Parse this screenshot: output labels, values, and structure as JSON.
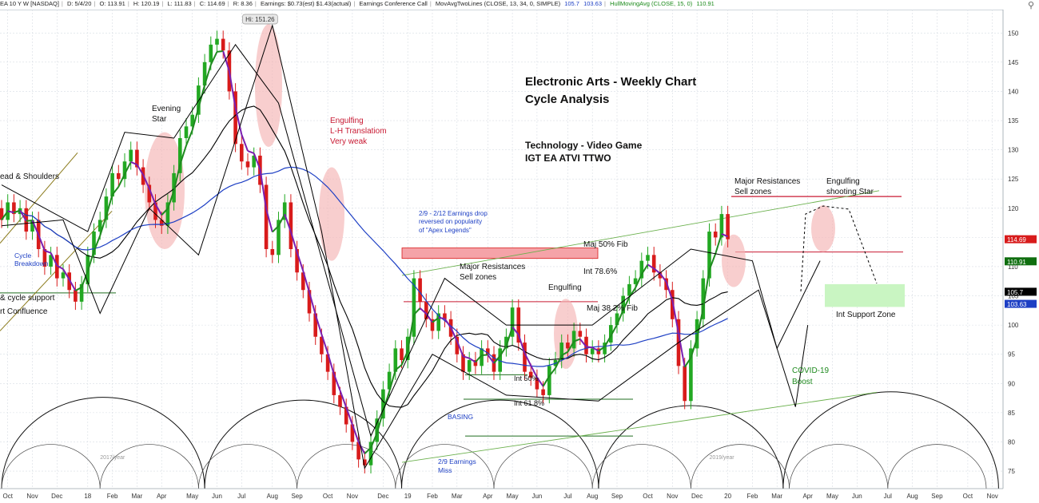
{
  "header": {
    "symbol": "EA 10 Y W [NASDAQ]",
    "date": "D: 5/4/20",
    "open": "O: 113.91",
    "high": "H: 120.19",
    "low": "L: 111.83",
    "close": "C: 114.69",
    "range": "R: 8.36",
    "earnings": "Earnings: $0.73(est) $1.43(actual)",
    "conference": "Earnings Conference Call",
    "movavg_label": "MovAvgTwoLines (CLOSE, 13, 34, 0, SIMPLE)",
    "movavg_v1": "105.7",
    "movavg_v2": "103.63",
    "hull_label": "HullMovingAvg (CLOSE, 15, 0)",
    "hull_v": "110.91",
    "zoom_icon": "magnifier-icon"
  },
  "chart_data": {
    "type": "candlestick",
    "ylim": [
      72,
      154
    ],
    "ytick_step": 5,
    "x_labels": [
      "Oct",
      "Nov",
      "Dec",
      "18",
      "Feb",
      "Mar",
      "Apr",
      "May",
      "Jun",
      "Jul",
      "Aug",
      "Sep",
      "Oct",
      "Nov",
      "Dec",
      "19",
      "Feb",
      "Mar",
      "Apr",
      "May",
      "Jun",
      "Jul",
      "Aug",
      "Sep",
      "Oct",
      "Nov",
      "Dec",
      "20",
      "Feb",
      "Mar",
      "Apr",
      "May",
      "Jun",
      "Jul",
      "Aug",
      "Sep",
      "Oct",
      "Nov"
    ],
    "x_label_weeks": [
      1,
      5,
      9,
      14,
      18,
      22,
      26,
      31,
      35,
      39,
      44,
      48,
      53,
      57,
      62,
      66,
      70,
      74,
      79,
      83,
      87,
      92,
      96,
      100,
      105,
      109,
      113,
      118,
      122,
      126,
      131,
      135,
      139,
      144,
      148,
      152,
      157,
      161
    ],
    "candles": [
      {
        "o": 120,
        "c": 118
      },
      {
        "o": 118,
        "c": 121
      },
      {
        "o": 121,
        "c": 119
      },
      {
        "o": 119,
        "c": 120
      },
      {
        "o": 120,
        "c": 116
      },
      {
        "o": 116,
        "c": 118
      },
      {
        "o": 118,
        "c": 113
      },
      {
        "o": 113,
        "c": 110
      },
      {
        "o": 110,
        "c": 112
      },
      {
        "o": 112,
        "c": 108
      },
      {
        "o": 108,
        "c": 109
      },
      {
        "o": 109,
        "c": 106
      },
      {
        "o": 106,
        "c": 104
      },
      {
        "o": 104,
        "c": 107
      },
      {
        "o": 107,
        "c": 112
      },
      {
        "o": 112,
        "c": 116
      },
      {
        "o": 116,
        "c": 118
      },
      {
        "o": 118,
        "c": 122
      },
      {
        "o": 122,
        "c": 126
      },
      {
        "o": 126,
        "c": 125
      },
      {
        "o": 125,
        "c": 128
      },
      {
        "o": 128,
        "c": 130
      },
      {
        "o": 130,
        "c": 127
      },
      {
        "o": 127,
        "c": 124
      },
      {
        "o": 124,
        "c": 121
      },
      {
        "o": 121,
        "c": 118
      },
      {
        "o": 118,
        "c": 117
      },
      {
        "o": 117,
        "c": 121
      },
      {
        "o": 121,
        "c": 126
      },
      {
        "o": 126,
        "c": 132
      },
      {
        "o": 132,
        "c": 134
      },
      {
        "o": 134,
        "c": 136
      },
      {
        "o": 136,
        "c": 141
      },
      {
        "o": 141,
        "c": 145
      },
      {
        "o": 145,
        "c": 148
      },
      {
        "o": 148,
        "c": 149
      },
      {
        "o": 149,
        "c": 147
      },
      {
        "o": 147,
        "c": 140
      },
      {
        "o": 140,
        "c": 131
      },
      {
        "o": 131,
        "c": 128
      },
      {
        "o": 128,
        "c": 127
      },
      {
        "o": 127,
        "c": 129
      },
      {
        "o": 129,
        "c": 124
      },
      {
        "o": 124,
        "c": 113
      },
      {
        "o": 113,
        "c": 112
      },
      {
        "o": 112,
        "c": 118
      },
      {
        "o": 118,
        "c": 121
      },
      {
        "o": 121,
        "c": 113
      },
      {
        "o": 113,
        "c": 109
      },
      {
        "o": 109,
        "c": 106
      },
      {
        "o": 106,
        "c": 102
      },
      {
        "o": 102,
        "c": 98
      },
      {
        "o": 98,
        "c": 95
      },
      {
        "o": 95,
        "c": 92
      },
      {
        "o": 92,
        "c": 88
      },
      {
        "o": 88,
        "c": 86
      },
      {
        "o": 86,
        "c": 83
      },
      {
        "o": 83,
        "c": 80
      },
      {
        "o": 80,
        "c": 77
      },
      {
        "o": 77,
        "c": 76
      },
      {
        "o": 76,
        "c": 80
      },
      {
        "o": 80,
        "c": 84
      },
      {
        "o": 84,
        "c": 89
      },
      {
        "o": 89,
        "c": 92
      },
      {
        "o": 92,
        "c": 96
      },
      {
        "o": 96,
        "c": 94
      },
      {
        "o": 94,
        "c": 98
      },
      {
        "o": 98,
        "c": 108
      },
      {
        "o": 108,
        "c": 104
      },
      {
        "o": 104,
        "c": 101
      },
      {
        "o": 101,
        "c": 99
      },
      {
        "o": 99,
        "c": 102
      },
      {
        "o": 102,
        "c": 101
      },
      {
        "o": 101,
        "c": 98
      },
      {
        "o": 98,
        "c": 95
      },
      {
        "o": 95,
        "c": 92
      },
      {
        "o": 92,
        "c": 94
      },
      {
        "o": 94,
        "c": 93
      },
      {
        "o": 93,
        "c": 96
      },
      {
        "o": 96,
        "c": 95
      },
      {
        "o": 95,
        "c": 92
      },
      {
        "o": 92,
        "c": 96
      },
      {
        "o": 96,
        "c": 98
      },
      {
        "o": 98,
        "c": 103
      },
      {
        "o": 103,
        "c": 97
      },
      {
        "o": 97,
        "c": 92
      },
      {
        "o": 92,
        "c": 91
      },
      {
        "o": 91,
        "c": 89
      },
      {
        "o": 89,
        "c": 88
      },
      {
        "o": 88,
        "c": 93
      },
      {
        "o": 93,
        "c": 94
      },
      {
        "o": 94,
        "c": 97
      },
      {
        "o": 97,
        "c": 96
      },
      {
        "o": 96,
        "c": 99
      },
      {
        "o": 99,
        "c": 98
      },
      {
        "o": 98,
        "c": 95
      },
      {
        "o": 95,
        "c": 96
      },
      {
        "o": 96,
        "c": 95
      },
      {
        "o": 95,
        "c": 97
      },
      {
        "o": 97,
        "c": 100
      },
      {
        "o": 100,
        "c": 102
      },
      {
        "o": 102,
        "c": 105
      },
      {
        "o": 105,
        "c": 107
      },
      {
        "o": 107,
        "c": 108
      },
      {
        "o": 108,
        "c": 111
      },
      {
        "o": 111,
        "c": 112
      },
      {
        "o": 112,
        "c": 109
      },
      {
        "o": 109,
        "c": 108
      },
      {
        "o": 108,
        "c": 106
      },
      {
        "o": 106,
        "c": 101
      },
      {
        "o": 101,
        "c": 93
      },
      {
        "o": 93,
        "c": 87
      },
      {
        "o": 87,
        "c": 96
      },
      {
        "o": 96,
        "c": 101
      },
      {
        "o": 101,
        "c": 108
      },
      {
        "o": 108,
        "c": 116
      },
      {
        "o": 116,
        "c": 115
      },
      {
        "o": 115,
        "c": 119
      },
      {
        "o": 119,
        "c": 114.69
      }
    ],
    "annotations": {
      "title": "Electronic Arts - Weekly Chart",
      "subtitle": "Cycle Analysis",
      "sector": "Technology - Video Game",
      "peers": "IGT EA ATVI TTWO",
      "hi_badge": "Hi: 151.26",
      "evening_star_1": "Evening",
      "evening_star_2": "Star",
      "engulfing_red_1": "Engulfing",
      "engulfing_red_2": "L-H Translatiom",
      "engulfing_red_3": "Very weak",
      "head_shoulders": "ead & Shoulders",
      "cycle_breakdown_1": "Cycle",
      "cycle_breakdown_2": "Breakdown",
      "cycle_support": "& cycle support",
      "confluence": "rt Confluence",
      "earnings_drop_1": "2/9 - 2/12 Earnings drop",
      "earnings_drop_2": "reversed on popularity",
      "earnings_drop_3": "of \"Apex Legends\"",
      "maj_res_1": "Major Resistances",
      "maj_res_2": "Sell zones",
      "maj50": "Maj 50% Fib",
      "int786": "Int 78.6%",
      "engulfing_mid": "Engulfing",
      "maj382": "Maj 38.2% Fib",
      "int50": "Int 50%",
      "int618": "Int 61.8%",
      "basing": "BASING",
      "earn_miss_1": "2/9 Earnings",
      "earn_miss_2": "Miss",
      "maj_res_r1": "Major Resistances",
      "maj_res_r2": "Sell zones",
      "shooting_1": "Engulfing",
      "shooting_2": "shooting Star",
      "int_support": "Int Support Zone",
      "covid_1": "COVID-19",
      "covid_2": "Boost",
      "year_2017": "2017/year",
      "year_2019": "2019/year"
    },
    "price_labels": [
      {
        "value": 114.69,
        "text": "114.69",
        "color": "#d81b1b"
      },
      {
        "value": 110.91,
        "text": "110.91",
        "color": "#0f6e0f"
      },
      {
        "value": 105.7,
        "text": "105.7",
        "color": "#000000"
      },
      {
        "value": 103.63,
        "text": "103.63",
        "color": "#1d3fc4"
      }
    ],
    "colors": {
      "up": "#22a822",
      "down": "#d81b1b",
      "ma_fast": "#000000",
      "ma_slow": "#1d3fc4",
      "hull_green": "#1f8a1f",
      "hull_purple": "#7a1fb0",
      "grid": "#d7dde3"
    }
  }
}
